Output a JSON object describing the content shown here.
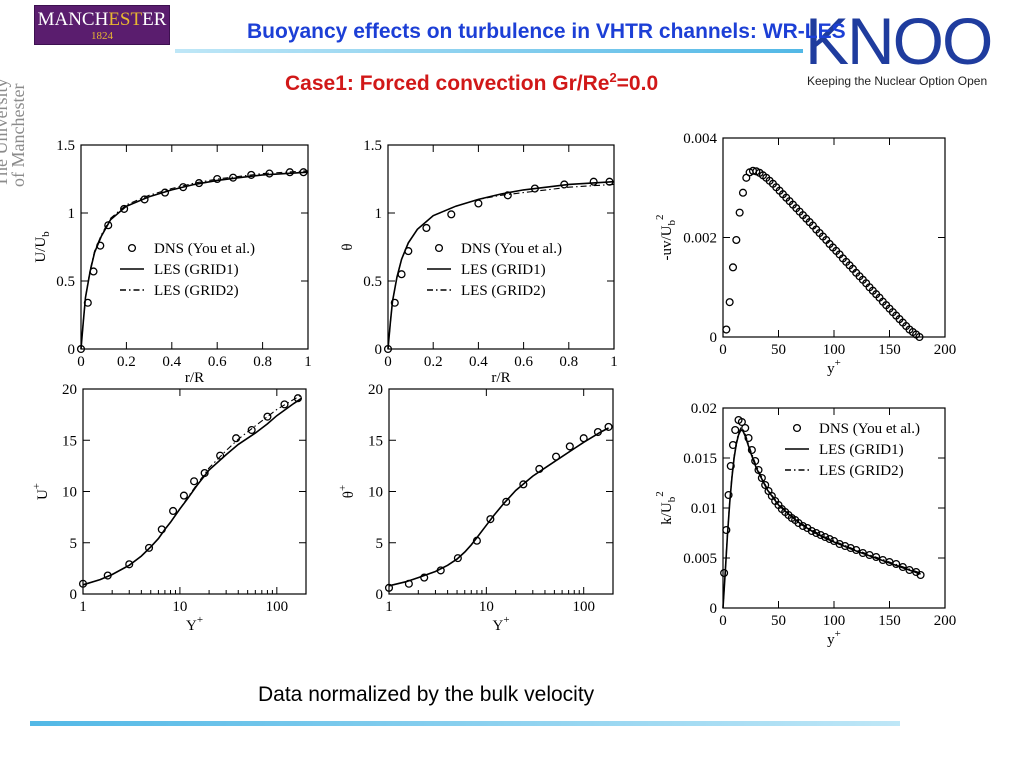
{
  "header": {
    "title": "Buoyancy effects on turbulence in VHTR channels: WR-LES",
    "subtitle_main": "Case1: Forced convection Gr/Re",
    "subtitle_sup": "2",
    "subtitle_tail": "=0.0"
  },
  "logos": {
    "manchester_name_a": "MANCH",
    "manchester_name_b": "EST",
    "manchester_name_c": "ER",
    "manchester_year": "1824",
    "side_line1": "The University",
    "side_line2": "of Manchester",
    "knoo_big": "KNOO",
    "knoo_tag": "Keeping the Nuclear Option Open"
  },
  "footer": {
    "note": "Data normalized by the bulk velocity"
  },
  "colors": {
    "title_blue": "#1c3fd6",
    "case_red": "#d11818",
    "manchester_purple": "#5a1d6e",
    "accent_cyan": "#52b8e6"
  },
  "chart_data": [
    {
      "id": "U_vs_r",
      "type": "line",
      "xlabel": "r/R",
      "ylabel": "U/U",
      "ylabel_sub": "b",
      "xlim": [
        0,
        1
      ],
      "ylim": [
        0,
        1.5
      ],
      "xscale": "linear",
      "xticks": [
        0,
        0.2,
        0.4,
        0.6,
        0.8,
        1
      ],
      "xtick_labels": [
        "0",
        "0.2",
        "0.4",
        "0.6",
        "0.8",
        "1"
      ],
      "yticks": [
        0,
        0.5,
        1,
        1.5
      ],
      "ytick_labels": [
        "0",
        "0.5",
        "1",
        "1.5"
      ],
      "legend": "center-right",
      "legend_labels": [
        "DNS (You et al.)",
        "LES (GRID1)",
        "LES (GRID2)"
      ],
      "series": [
        {
          "name": "DNS (You et al.)",
          "style": "circles",
          "x": [
            0.0,
            0.03,
            0.055,
            0.085,
            0.12,
            0.19,
            0.28,
            0.37,
            0.45,
            0.52,
            0.6,
            0.67,
            0.75,
            0.83,
            0.92,
            0.98
          ],
          "y": [
            0.0,
            0.34,
            0.57,
            0.76,
            0.91,
            1.03,
            1.1,
            1.15,
            1.19,
            1.22,
            1.25,
            1.26,
            1.28,
            1.29,
            1.3,
            1.3
          ]
        },
        {
          "name": "LES (GRID1)",
          "style": "solid",
          "x": [
            0.0,
            0.01,
            0.02,
            0.04,
            0.06,
            0.09,
            0.13,
            0.2,
            0.3,
            0.4,
            0.5,
            0.6,
            0.7,
            0.8,
            0.9,
            1.0
          ],
          "y": [
            0.0,
            0.2,
            0.38,
            0.57,
            0.71,
            0.83,
            0.95,
            1.05,
            1.12,
            1.17,
            1.21,
            1.24,
            1.26,
            1.28,
            1.29,
            1.3
          ]
        },
        {
          "name": "LES (GRID2)",
          "style": "dashdot",
          "x": [
            0.0,
            0.01,
            0.02,
            0.04,
            0.06,
            0.09,
            0.13,
            0.2,
            0.3,
            0.4,
            0.5,
            0.6,
            0.7,
            0.8,
            0.9,
            1.0
          ],
          "y": [
            0.0,
            0.2,
            0.38,
            0.58,
            0.72,
            0.84,
            0.96,
            1.06,
            1.13,
            1.18,
            1.22,
            1.25,
            1.27,
            1.29,
            1.3,
            1.31
          ]
        }
      ]
    },
    {
      "id": "theta_vs_r",
      "type": "line",
      "xlabel": "r/R",
      "ylabel": "θ",
      "ylabel_sub": "",
      "xlim": [
        0,
        1
      ],
      "ylim": [
        0,
        1.5
      ],
      "xscale": "linear",
      "xticks": [
        0,
        0.2,
        0.4,
        0.6,
        0.8,
        1
      ],
      "xtick_labels": [
        "0",
        "0.2",
        "0.4",
        "0.6",
        "0.8",
        "1"
      ],
      "yticks": [
        0,
        0.5,
        1,
        1.5
      ],
      "ytick_labels": [
        "0",
        "0.5",
        "1",
        "1.5"
      ],
      "legend": "center-right",
      "legend_labels": [
        "DNS (You et al.)",
        "LES (GRID1)",
        "LES (GRID2)"
      ],
      "series": [
        {
          "name": "DNS (You et al.)",
          "style": "circles",
          "x": [
            0.0,
            0.03,
            0.06,
            0.09,
            0.17,
            0.28,
            0.4,
            0.53,
            0.65,
            0.78,
            0.91,
            0.98
          ],
          "y": [
            0.0,
            0.34,
            0.55,
            0.72,
            0.89,
            0.99,
            1.07,
            1.13,
            1.18,
            1.21,
            1.23,
            1.23
          ]
        },
        {
          "name": "LES (GRID1)",
          "style": "solid",
          "x": [
            0.0,
            0.01,
            0.02,
            0.04,
            0.06,
            0.09,
            0.13,
            0.2,
            0.3,
            0.4,
            0.5,
            0.6,
            0.7,
            0.8,
            0.9,
            1.0
          ],
          "y": [
            0.0,
            0.19,
            0.35,
            0.53,
            0.66,
            0.78,
            0.88,
            0.98,
            1.05,
            1.1,
            1.14,
            1.17,
            1.19,
            1.21,
            1.22,
            1.23
          ]
        },
        {
          "name": "LES (GRID2)",
          "style": "dashdot",
          "x": [
            0.0,
            0.01,
            0.02,
            0.04,
            0.06,
            0.09,
            0.13,
            0.2,
            0.3,
            0.4,
            0.5,
            0.6,
            0.7,
            0.8,
            0.9,
            1.0
          ],
          "y": [
            0.0,
            0.19,
            0.35,
            0.53,
            0.66,
            0.78,
            0.88,
            0.98,
            1.05,
            1.1,
            1.13,
            1.15,
            1.17,
            1.19,
            1.2,
            1.21
          ]
        }
      ]
    },
    {
      "id": "uv_vs_yplus",
      "type": "line",
      "xlabel": "y",
      "xlabel_sup": "+",
      "ylabel": "-uv/U",
      "ylabel_sub": "b",
      "ylabel_sup": "2",
      "xlim": [
        0,
        200
      ],
      "ylim": [
        0,
        0.004
      ],
      "xscale": "linear",
      "xticks": [
        0,
        50,
        100,
        150,
        200
      ],
      "xtick_labels": [
        "0",
        "50",
        "100",
        "150",
        "200"
      ],
      "yticks": [
        0,
        0.002,
        0.004
      ],
      "ytick_labels": [
        "0",
        "0.002",
        "0.004"
      ],
      "series": [
        {
          "name": "DNS (You et al.)",
          "style": "circles",
          "x": [
            3,
            6,
            9,
            12,
            15,
            18,
            21,
            24,
            27,
            30,
            33,
            36,
            39,
            42,
            45,
            48,
            51,
            54,
            57,
            60,
            63,
            66,
            69,
            72,
            75,
            78,
            81,
            84,
            87,
            90,
            93,
            96,
            99,
            102,
            105,
            108,
            111,
            114,
            117,
            120,
            123,
            126,
            129,
            132,
            135,
            138,
            141,
            144,
            147,
            150,
            153,
            156,
            159,
            162,
            165,
            168,
            171,
            174,
            177
          ],
          "y": [
            0.00015,
            0.0007,
            0.0014,
            0.00195,
            0.0025,
            0.0029,
            0.0032,
            0.00331,
            0.00334,
            0.00333,
            0.0033,
            0.00325,
            0.0032,
            0.00314,
            0.00308,
            0.00301,
            0.00294,
            0.00287,
            0.0028,
            0.00273,
            0.00266,
            0.00259,
            0.00252,
            0.00245,
            0.00238,
            0.00231,
            0.00224,
            0.00216,
            0.00209,
            0.00202,
            0.00195,
            0.00187,
            0.0018,
            0.00173,
            0.00166,
            0.00158,
            0.00151,
            0.00144,
            0.00137,
            0.00129,
            0.00122,
            0.00115,
            0.00108,
            0.001,
            0.00093,
            0.00086,
            0.00079,
            0.00071,
            0.00064,
            0.00057,
            0.0005,
            0.00043,
            0.00036,
            0.00029,
            0.00022,
            0.00015,
            0.0001,
            5e-05,
            0.0
          ]
        }
      ]
    },
    {
      "id": "Uplus_vs_Yplus",
      "type": "line",
      "xlabel": "Y",
      "xlabel_sup": "+",
      "ylabel": "U",
      "ylabel_sup": "+",
      "xlim": [
        1,
        200
      ],
      "ylim": [
        0,
        20
      ],
      "xscale": "log",
      "xticks": [
        1,
        10,
        100
      ],
      "xtick_labels": [
        "1",
        "10",
        "100"
      ],
      "yticks": [
        0,
        5,
        10,
        15,
        20
      ],
      "ytick_labels": [
        "0",
        "5",
        "10",
        "15",
        "20"
      ],
      "series": [
        {
          "name": "DNS (You et al.)",
          "style": "circles",
          "x": [
            1.0,
            1.8,
            3.0,
            4.8,
            6.5,
            8.5,
            11,
            14,
            18,
            26,
            38,
            55,
            80,
            120,
            165
          ],
          "y": [
            1.0,
            1.8,
            2.9,
            4.5,
            6.3,
            8.1,
            9.6,
            11.0,
            11.8,
            13.5,
            15.2,
            16.0,
            17.3,
            18.5,
            19.1
          ]
        },
        {
          "name": "LES (GRID1)",
          "style": "solid",
          "x": [
            1,
            1.5,
            2,
            3,
            4,
            5,
            6,
            7,
            8,
            10,
            12,
            15,
            20,
            30,
            40,
            60,
            80,
            100,
            150,
            180
          ],
          "y": [
            0.9,
            1.4,
            1.9,
            2.8,
            3.7,
            4.6,
            5.4,
            6.3,
            7.0,
            8.3,
            9.3,
            10.6,
            12.1,
            13.6,
            14.6,
            15.7,
            16.6,
            17.4,
            18.6,
            19.1
          ]
        },
        {
          "name": "LES (GRID2)",
          "style": "dashdot",
          "x": [
            1,
            1.5,
            2,
            3,
            4,
            5,
            6,
            7,
            8,
            10,
            12,
            15,
            20,
            30,
            40,
            60,
            80,
            100,
            150,
            180
          ],
          "y": [
            0.9,
            1.4,
            1.9,
            2.8,
            3.7,
            4.6,
            5.4,
            6.3,
            7.0,
            8.3,
            9.4,
            10.7,
            12.3,
            14.0,
            15.1,
            16.4,
            17.3,
            18.0,
            19.0,
            19.4
          ]
        }
      ]
    },
    {
      "id": "thetaplus_vs_Yplus",
      "type": "line",
      "xlabel": "Y",
      "xlabel_sup": "+",
      "ylabel": "θ",
      "ylabel_sup": "+",
      "xlim": [
        1,
        200
      ],
      "ylim": [
        0,
        20
      ],
      "xscale": "log",
      "xticks": [
        1,
        10,
        100
      ],
      "xtick_labels": [
        "1",
        "10",
        "100"
      ],
      "yticks": [
        0,
        5,
        10,
        15,
        20
      ],
      "ytick_labels": [
        "0",
        "5",
        "10",
        "15",
        "20"
      ],
      "series": [
        {
          "name": "DNS (You et al.)",
          "style": "circles",
          "x": [
            1.0,
            1.6,
            2.3,
            3.4,
            5.1,
            8.0,
            11,
            16,
            24,
            35,
            52,
            72,
            100,
            140,
            180
          ],
          "y": [
            0.6,
            1.0,
            1.6,
            2.3,
            3.5,
            5.2,
            7.3,
            9.0,
            10.7,
            12.2,
            13.4,
            14.4,
            15.2,
            15.8,
            16.3
          ]
        },
        {
          "name": "LES (GRID1)",
          "style": "solid",
          "x": [
            1,
            1.5,
            2,
            3,
            4,
            5,
            6,
            7,
            8,
            10,
            12,
            15,
            20,
            30,
            40,
            60,
            80,
            100,
            150,
            180
          ],
          "y": [
            0.8,
            1.2,
            1.6,
            2.2,
            2.8,
            3.4,
            4.1,
            4.8,
            5.5,
            6.7,
            7.7,
            8.8,
            10.1,
            11.5,
            12.3,
            13.4,
            14.2,
            14.8,
            15.8,
            16.2
          ]
        },
        {
          "name": "LES (GRID2)",
          "style": "dashdot",
          "x": [
            1,
            1.5,
            2,
            3,
            4,
            5,
            6,
            7,
            8,
            10,
            12,
            15,
            20,
            30,
            40,
            60,
            80,
            100,
            150,
            180
          ],
          "y": [
            0.8,
            1.2,
            1.6,
            2.2,
            2.8,
            3.4,
            4.1,
            4.8,
            5.5,
            6.7,
            7.7,
            8.8,
            10.1,
            11.5,
            12.3,
            13.4,
            14.2,
            14.8,
            15.8,
            16.2
          ]
        }
      ]
    },
    {
      "id": "k_vs_yplus",
      "type": "line",
      "xlabel": "y",
      "xlabel_sup": "+",
      "ylabel": "k/U",
      "ylabel_sub": "b",
      "ylabel_sup": "2",
      "xlim": [
        0,
        200
      ],
      "ylim": [
        0,
        0.02
      ],
      "xscale": "linear",
      "xticks": [
        0,
        50,
        100,
        150,
        200
      ],
      "xtick_labels": [
        "0",
        "50",
        "100",
        "150",
        "200"
      ],
      "yticks": [
        0,
        0.005,
        0.01,
        0.015,
        0.02
      ],
      "ytick_labels": [
        "0",
        "0.005",
        "0.01",
        "0.015",
        "0.02"
      ],
      "legend": "top-right",
      "legend_labels": [
        "DNS (You et al.)",
        "LES (GRID1)",
        "LES (GRID2)"
      ],
      "series": [
        {
          "name": "DNS (You et al.)",
          "style": "circles",
          "x": [
            1,
            3,
            5,
            7,
            9,
            11,
            14,
            17,
            20,
            23,
            26,
            29,
            32,
            35,
            38,
            41,
            44,
            47,
            50,
            53,
            56,
            59,
            62,
            65,
            68,
            72,
            76,
            80,
            84,
            88,
            92,
            96,
            100,
            105,
            110,
            115,
            120,
            126,
            132,
            138,
            144,
            150,
            156,
            162,
            168,
            174,
            178
          ],
          "y": [
            0.0035,
            0.0078,
            0.0113,
            0.0142,
            0.0163,
            0.0178,
            0.0188,
            0.0186,
            0.018,
            0.017,
            0.0158,
            0.0147,
            0.0138,
            0.013,
            0.0123,
            0.0117,
            0.0112,
            0.0107,
            0.0103,
            0.0099,
            0.0096,
            0.0093,
            0.009,
            0.0088,
            0.0085,
            0.0082,
            0.008,
            0.0077,
            0.0075,
            0.0073,
            0.0071,
            0.0069,
            0.0067,
            0.0064,
            0.0062,
            0.006,
            0.0058,
            0.0055,
            0.0053,
            0.0051,
            0.0048,
            0.0046,
            0.0044,
            0.0041,
            0.0038,
            0.0036,
            0.0033
          ]
        },
        {
          "name": "LES (GRID1)",
          "style": "solid",
          "x": [
            0,
            2,
            4,
            6,
            8,
            10,
            12,
            14,
            16,
            18,
            20,
            25,
            30,
            40,
            50,
            60,
            70,
            80,
            90,
            100,
            120,
            140,
            160,
            178
          ],
          "y": [
            0.0,
            0.0035,
            0.0072,
            0.0105,
            0.013,
            0.015,
            0.0164,
            0.0173,
            0.0178,
            0.0177,
            0.0172,
            0.0155,
            0.014,
            0.0118,
            0.0103,
            0.0093,
            0.0084,
            0.0077,
            0.0071,
            0.0066,
            0.0057,
            0.0049,
            0.0041,
            0.0034
          ]
        },
        {
          "name": "LES (GRID2)",
          "style": "dashdot",
          "x": [
            0,
            2,
            4,
            6,
            8,
            10,
            12,
            14,
            16,
            18,
            20,
            25,
            30,
            40,
            50,
            60,
            70,
            80,
            90,
            100,
            120,
            140,
            160,
            178
          ],
          "y": [
            0.0,
            0.0036,
            0.0074,
            0.0107,
            0.0132,
            0.0152,
            0.0166,
            0.0175,
            0.018,
            0.0179,
            0.0174,
            0.0157,
            0.0142,
            0.0119,
            0.0104,
            0.0094,
            0.0085,
            0.0078,
            0.0072,
            0.0067,
            0.0058,
            0.005,
            0.0042,
            0.0035
          ]
        }
      ]
    }
  ]
}
